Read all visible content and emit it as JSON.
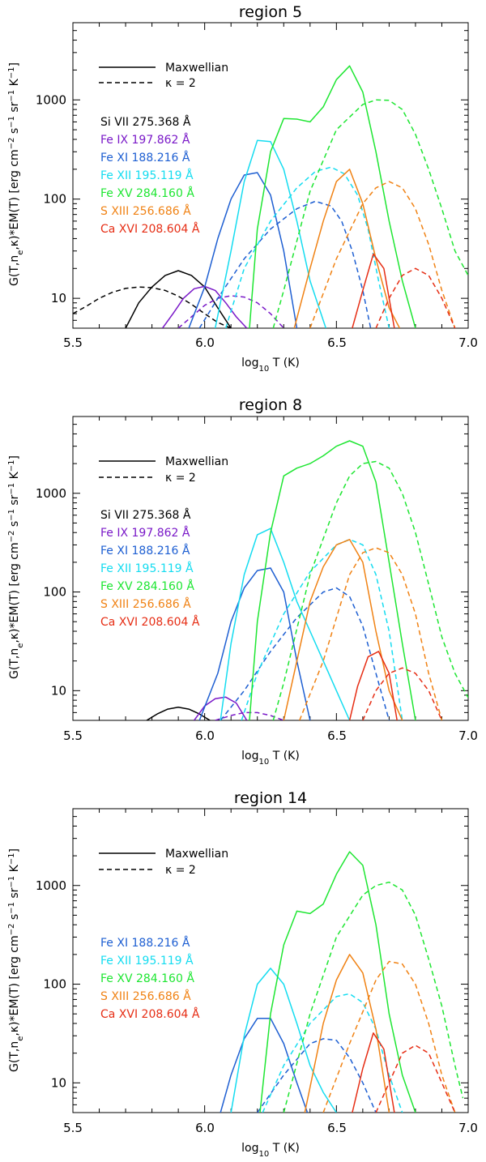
{
  "figure": {
    "x_label": "log10 T (K)",
    "y_label": "G(T,ne,κ)*EM(T) [erg cm−2 s−1 sr−1 K−1]",
    "legend": {
      "maxwellian": "Maxwellian",
      "kappa": "κ = 2"
    },
    "colors": {
      "Si VII": "#000000",
      "Fe IX": "#7a19c8",
      "Fe XI": "#1e5fd2",
      "Fe XII": "#14dcf0",
      "Fe XV": "#1ee632",
      "S XIII": "#f08214",
      "Ca XVI": "#e62d14"
    }
  },
  "chart_data": [
    {
      "type": "line",
      "title": "region 5",
      "xlabel": "log10 T (K)",
      "ylabel": "G(T,ne,κ)*EM(T) [erg cm−2 s−1 sr−1 K−1]",
      "xlim": [
        5.5,
        7.0
      ],
      "ylim": [
        5,
        6000
      ],
      "yscale": "log",
      "x_ticks": [
        "5.5",
        "6.0",
        "6.5",
        "7.0"
      ],
      "y_ticks": [
        "10",
        "100",
        "1000"
      ],
      "labels": [
        "Si VII 275.368 Å",
        "Fe IX 197.862 Å",
        "Fe XI 188.216 Å",
        "Fe XII 195.119 Å",
        "Fe XV 284.160 Å",
        "S XIII  256.686 Å",
        "Ca XVI 208.604 Å"
      ],
      "series": [
        {
          "ion": "Si VII",
          "style": "solid",
          "x": [
            5.7,
            5.75,
            5.8,
            5.85,
            5.9,
            5.95,
            6.0,
            6.05,
            6.1
          ],
          "y": [
            5,
            9,
            13,
            17,
            19,
            17,
            13,
            8,
            5
          ]
        },
        {
          "ion": "Si VII",
          "style": "dashed",
          "x": [
            5.5,
            5.55,
            5.6,
            5.65,
            5.7,
            5.75,
            5.8,
            5.85,
            5.9,
            5.95,
            6.0,
            6.05,
            6.1
          ],
          "y": [
            7,
            8.3,
            10,
            11.5,
            12.6,
            13,
            12.8,
            12,
            10.5,
            8.7,
            7,
            5.7,
            5
          ]
        },
        {
          "ion": "Fe IX",
          "style": "solid",
          "x": [
            5.84,
            5.88,
            5.92,
            5.96,
            6.0,
            6.04,
            6.08,
            6.12,
            6.16
          ],
          "y": [
            5,
            7,
            10,
            12.5,
            13.2,
            12,
            9,
            6.5,
            5
          ]
        },
        {
          "ion": "Fe IX",
          "style": "dashed",
          "x": [
            5.9,
            5.95,
            6.0,
            6.05,
            6.1,
            6.15,
            6.2,
            6.25,
            6.3
          ],
          "y": [
            5,
            6.5,
            8.5,
            10,
            10.6,
            10.3,
            9,
            7,
            5
          ]
        },
        {
          "ion": "Fe XI",
          "style": "solid",
          "x": [
            5.94,
            6.0,
            6.05,
            6.1,
            6.15,
            6.2,
            6.25,
            6.3,
            6.35
          ],
          "y": [
            5,
            13,
            40,
            100,
            175,
            185,
            110,
            30,
            5
          ]
        },
        {
          "ion": "Fe XI",
          "style": "dashed",
          "x": [
            5.98,
            6.05,
            6.15,
            6.25,
            6.35,
            6.42,
            6.48,
            6.52,
            6.56,
            6.6,
            6.63
          ],
          "y": [
            5,
            10,
            25,
            50,
            80,
            95,
            85,
            60,
            30,
            12,
            5
          ]
        },
        {
          "ion": "Fe XII",
          "style": "solid",
          "x": [
            6.04,
            6.1,
            6.15,
            6.2,
            6.25,
            6.3,
            6.35,
            6.4,
            6.46
          ],
          "y": [
            5,
            30,
            150,
            390,
            380,
            200,
            60,
            15,
            5
          ]
        },
        {
          "ion": "Fe XII",
          "style": "dashed",
          "x": [
            6.08,
            6.15,
            6.25,
            6.35,
            6.42,
            6.48,
            6.53,
            6.58,
            6.62,
            6.66,
            6.7
          ],
          "y": [
            5,
            20,
            60,
            130,
            190,
            210,
            180,
            110,
            50,
            15,
            5
          ]
        },
        {
          "ion": "Fe XV",
          "style": "solid",
          "x": [
            6.17,
            6.2,
            6.25,
            6.3,
            6.35,
            6.4,
            6.45,
            6.5,
            6.55,
            6.6,
            6.65,
            6.7,
            6.75,
            6.8
          ],
          "y": [
            5,
            50,
            300,
            650,
            640,
            600,
            850,
            1600,
            2200,
            1200,
            300,
            60,
            15,
            5
          ]
        },
        {
          "ion": "Fe XV",
          "style": "dashed",
          "x": [
            6.26,
            6.3,
            6.4,
            6.5,
            6.6,
            6.65,
            6.7,
            6.75,
            6.8,
            6.85,
            6.9,
            6.95,
            7.0
          ],
          "y": [
            5,
            12,
            120,
            500,
            900,
            1000,
            990,
            800,
            450,
            200,
            80,
            30,
            17
          ]
        },
        {
          "ion": "S XIII",
          "style": "solid",
          "x": [
            6.34,
            6.4,
            6.45,
            6.5,
            6.55,
            6.6,
            6.65,
            6.7,
            6.74
          ],
          "y": [
            5,
            20,
            60,
            150,
            200,
            90,
            25,
            8,
            5
          ]
        },
        {
          "ion": "S XIII",
          "style": "dashed",
          "x": [
            6.4,
            6.5,
            6.6,
            6.65,
            6.7,
            6.75,
            6.8,
            6.85,
            6.9,
            6.95
          ],
          "y": [
            5,
            25,
            90,
            130,
            150,
            130,
            80,
            35,
            12,
            5
          ]
        },
        {
          "ion": "Ca XVI",
          "style": "solid",
          "x": [
            6.56,
            6.6,
            6.64,
            6.68,
            6.72
          ],
          "y": [
            5,
            12,
            28,
            20,
            5
          ]
        },
        {
          "ion": "Ca XVI",
          "style": "dashed",
          "x": [
            6.65,
            6.7,
            6.75,
            6.8,
            6.85,
            6.9,
            6.95
          ],
          "y": [
            5,
            10,
            17,
            20,
            17,
            10,
            5
          ]
        }
      ]
    },
    {
      "type": "line",
      "title": "region 8",
      "xlabel": "log10 T (K)",
      "ylabel": "G(T,ne,κ)*EM(T) [erg cm−2 s−1 sr−1 K−1]",
      "xlim": [
        5.5,
        7.0
      ],
      "ylim": [
        5,
        6000
      ],
      "yscale": "log",
      "x_ticks": [
        "5.5",
        "6.0",
        "6.5",
        "7.0"
      ],
      "y_ticks": [
        "10",
        "100",
        "1000"
      ],
      "labels": [
        "Si VII 275.368 Å",
        "Fe IX 197.862 Å",
        "Fe XI 188.216 Å",
        "Fe XII 195.119 Å",
        "Fe XV 284.160 Å",
        "S XIII  256.686 Å",
        "Ca XVI 208.604 Å"
      ],
      "series": [
        {
          "ion": "Si VII",
          "style": "solid",
          "x": [
            5.78,
            5.82,
            5.86,
            5.9,
            5.94,
            5.98,
            6.02
          ],
          "y": [
            5,
            5.8,
            6.5,
            6.8,
            6.5,
            5.8,
            5
          ]
        },
        {
          "ion": "Fe IX",
          "style": "solid",
          "x": [
            5.96,
            6.0,
            6.04,
            6.08,
            6.12,
            6.16
          ],
          "y": [
            5,
            7,
            8.3,
            8.6,
            7.5,
            5
          ]
        },
        {
          "ion": "Fe IX",
          "style": "dashed",
          "x": [
            6.04,
            6.1,
            6.15,
            6.2,
            6.25,
            6.3
          ],
          "y": [
            5,
            5.6,
            6,
            6,
            5.6,
            5
          ]
        },
        {
          "ion": "Fe XI",
          "style": "solid",
          "x": [
            5.98,
            6.05,
            6.1,
            6.15,
            6.2,
            6.25,
            6.3,
            6.35,
            6.4
          ],
          "y": [
            5,
            15,
            50,
            110,
            165,
            175,
            100,
            20,
            5
          ]
        },
        {
          "ion": "Fe XI",
          "style": "dashed",
          "x": [
            6.06,
            6.15,
            6.25,
            6.35,
            6.45,
            6.5,
            6.55,
            6.6,
            6.65,
            6.7
          ],
          "y": [
            5,
            10,
            25,
            55,
            100,
            110,
            90,
            45,
            15,
            5
          ]
        },
        {
          "ion": "Fe XII",
          "style": "solid",
          "x": [
            6.06,
            6.1,
            6.15,
            6.2,
            6.25,
            6.3,
            6.35,
            6.4,
            6.45,
            6.5,
            6.55
          ],
          "y": [
            5,
            30,
            150,
            380,
            440,
            200,
            80,
            40,
            20,
            10,
            5
          ]
        },
        {
          "ion": "Fe XII",
          "style": "dashed",
          "x": [
            6.14,
            6.2,
            6.3,
            6.4,
            6.5,
            6.55,
            6.6,
            6.65,
            6.7,
            6.75
          ],
          "y": [
            5,
            15,
            60,
            160,
            300,
            340,
            300,
            150,
            40,
            5
          ]
        },
        {
          "ion": "Fe XV",
          "style": "solid",
          "x": [
            6.17,
            6.2,
            6.25,
            6.3,
            6.35,
            6.4,
            6.45,
            6.5,
            6.55,
            6.6,
            6.65,
            6.7,
            6.75,
            6.8
          ],
          "y": [
            5,
            50,
            400,
            1500,
            1800,
            2000,
            2400,
            3000,
            3400,
            3000,
            1300,
            200,
            30,
            5
          ]
        },
        {
          "ion": "Fe XV",
          "style": "dashed",
          "x": [
            6.26,
            6.3,
            6.4,
            6.5,
            6.55,
            6.6,
            6.65,
            6.7,
            6.75,
            6.8,
            6.85,
            6.9,
            6.95,
            7.0
          ],
          "y": [
            5,
            12,
            150,
            800,
            1500,
            2000,
            2100,
            1800,
            1000,
            400,
            120,
            35,
            15,
            8.5
          ]
        },
        {
          "ion": "S XIII",
          "style": "solid",
          "x": [
            6.3,
            6.35,
            6.4,
            6.45,
            6.5,
            6.55,
            6.6,
            6.65,
            6.7,
            6.75
          ],
          "y": [
            5,
            20,
            80,
            180,
            300,
            340,
            200,
            40,
            10,
            5
          ]
        },
        {
          "ion": "S XIII",
          "style": "dashed",
          "x": [
            6.36,
            6.45,
            6.55,
            6.6,
            6.65,
            6.7,
            6.75,
            6.8,
            6.85,
            6.9
          ],
          "y": [
            5,
            20,
            150,
            250,
            280,
            250,
            150,
            60,
            15,
            5
          ]
        },
        {
          "ion": "Ca XVI",
          "style": "solid",
          "x": [
            6.55,
            6.58,
            6.62,
            6.66,
            6.7,
            6.73
          ],
          "y": [
            5,
            11,
            22,
            25,
            15,
            5
          ]
        },
        {
          "ion": "Ca XVI",
          "style": "dashed",
          "x": [
            6.6,
            6.65,
            6.7,
            6.75,
            6.8,
            6.85,
            6.9
          ],
          "y": [
            5,
            10,
            15,
            17,
            15,
            10,
            5
          ]
        }
      ]
    },
    {
      "type": "line",
      "title": "region 14",
      "xlabel": "log10 T (K)",
      "ylabel": "G(T,ne,κ)*EM(T) [erg cm−2 s−1 sr−1 K−1]",
      "xlim": [
        5.5,
        7.0
      ],
      "ylim": [
        5,
        6000
      ],
      "yscale": "log",
      "x_ticks": [
        "5.5",
        "6.0",
        "6.5",
        "7.0"
      ],
      "y_ticks": [
        "10",
        "100",
        "1000"
      ],
      "labels": [
        "Fe XI 188.216 Å",
        "Fe XII 195.119 Å",
        "Fe XV 284.160 Å",
        "S XIII  256.686 Å",
        "Ca XVI 208.604 Å"
      ],
      "series": [
        {
          "ion": "Fe XI",
          "style": "solid",
          "x": [
            6.06,
            6.1,
            6.15,
            6.2,
            6.25,
            6.3,
            6.35,
            6.39
          ],
          "y": [
            5,
            12,
            28,
            45,
            45,
            25,
            10,
            5
          ]
        },
        {
          "ion": "Fe XI",
          "style": "dashed",
          "x": [
            6.2,
            6.3,
            6.4,
            6.45,
            6.5,
            6.55,
            6.6,
            6.65
          ],
          "y": [
            5,
            12,
            25,
            28,
            27,
            18,
            10,
            5
          ]
        },
        {
          "ion": "Fe XII",
          "style": "solid",
          "x": [
            6.1,
            6.15,
            6.2,
            6.25,
            6.3,
            6.35,
            6.4,
            6.45,
            6.5
          ],
          "y": [
            5,
            30,
            100,
            145,
            100,
            40,
            15,
            8,
            5
          ]
        },
        {
          "ion": "Fe XII",
          "style": "dashed",
          "x": [
            6.22,
            6.3,
            6.4,
            6.5,
            6.55,
            6.6,
            6.65,
            6.7,
            6.75
          ],
          "y": [
            5,
            15,
            40,
            75,
            80,
            65,
            35,
            12,
            5
          ]
        },
        {
          "ion": "Fe XV",
          "style": "solid",
          "x": [
            6.21,
            6.25,
            6.3,
            6.35,
            6.4,
            6.45,
            6.5,
            6.55,
            6.6,
            6.65,
            6.7,
            6.75,
            6.8
          ],
          "y": [
            5,
            50,
            250,
            550,
            520,
            650,
            1300,
            2200,
            1600,
            400,
            50,
            12,
            5
          ]
        },
        {
          "ion": "Fe XV",
          "style": "dashed",
          "x": [
            6.3,
            6.4,
            6.5,
            6.6,
            6.65,
            6.7,
            6.75,
            6.8,
            6.85,
            6.9,
            6.95,
            6.98
          ],
          "y": [
            5,
            50,
            300,
            800,
            1000,
            1080,
            900,
            500,
            180,
            60,
            15,
            7
          ]
        },
        {
          "ion": "S XIII",
          "style": "solid",
          "x": [
            6.38,
            6.45,
            6.5,
            6.55,
            6.6,
            6.65,
            6.7
          ],
          "y": [
            5,
            40,
            110,
            200,
            130,
            35,
            5
          ]
        },
        {
          "ion": "S XIII",
          "style": "dashed",
          "x": [
            6.45,
            6.55,
            6.65,
            6.7,
            6.75,
            6.8,
            6.85,
            6.9,
            6.95
          ],
          "y": [
            5,
            25,
            110,
            170,
            160,
            100,
            40,
            12,
            5
          ]
        },
        {
          "ion": "Ca XVI",
          "style": "solid",
          "x": [
            6.56,
            6.6,
            6.64,
            6.68,
            6.72
          ],
          "y": [
            5,
            14,
            32,
            22,
            5
          ]
        },
        {
          "ion": "Ca XVI",
          "style": "dashed",
          "x": [
            6.65,
            6.7,
            6.75,
            6.8,
            6.85,
            6.9,
            6.95
          ],
          "y": [
            5,
            10,
            20,
            24,
            20,
            10,
            5
          ]
        }
      ]
    }
  ]
}
